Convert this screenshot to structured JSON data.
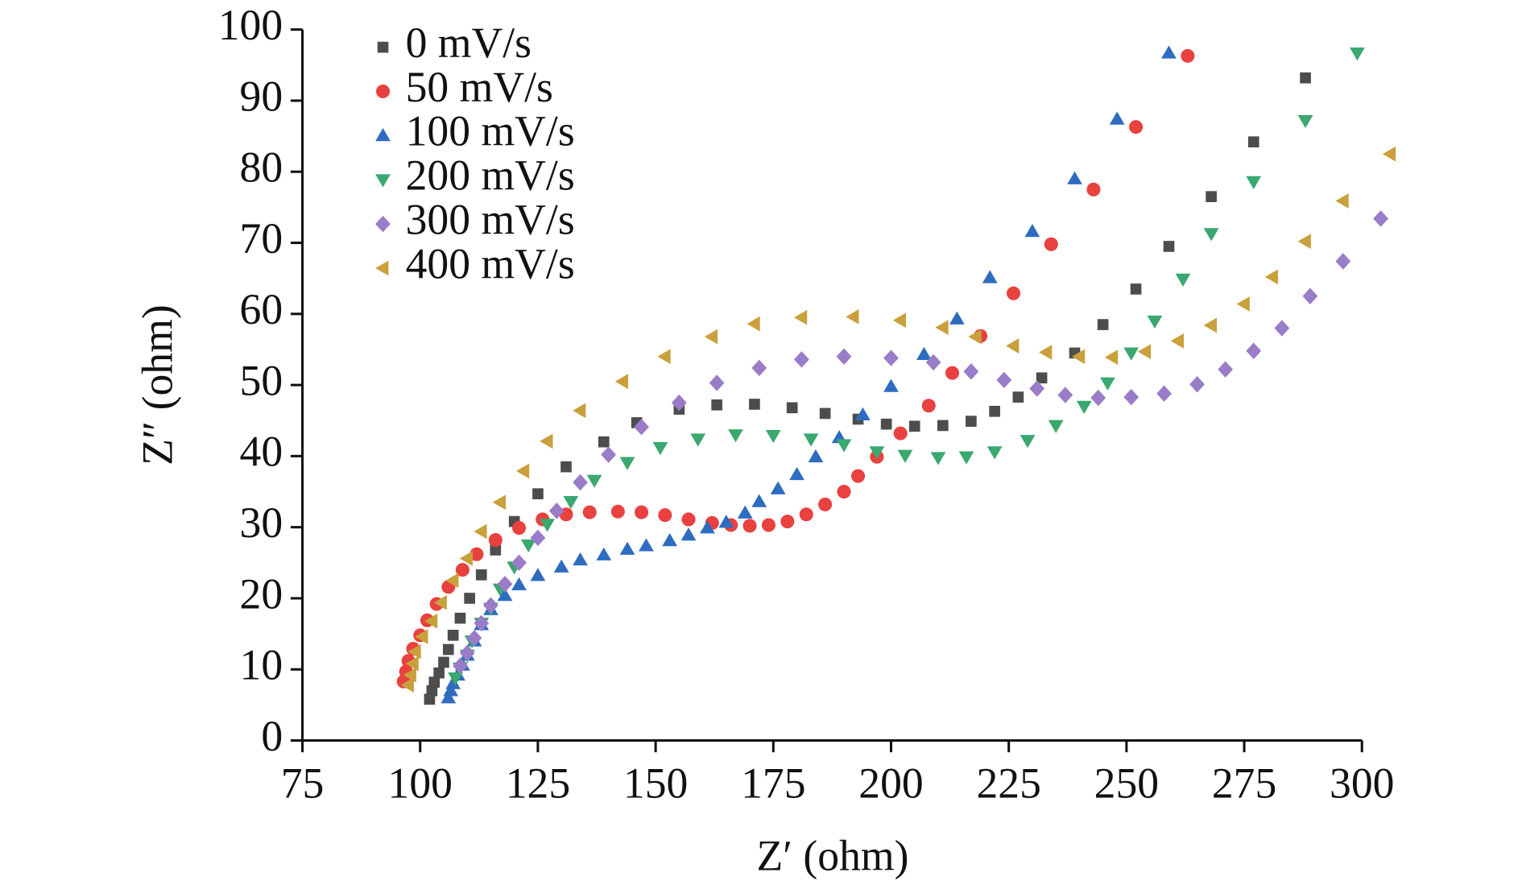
{
  "chart_data": {
    "type": "scatter",
    "xlabel": "Z′ (ohm)",
    "ylabel": "Z″ (ohm)",
    "xlim": [
      75,
      300
    ],
    "xticks": [
      75,
      100,
      125,
      150,
      175,
      200,
      225,
      250,
      275,
      300
    ],
    "ylim": [
      0,
      100
    ],
    "yticks": [
      0,
      10,
      20,
      30,
      40,
      50,
      60,
      70,
      80,
      90,
      100
    ],
    "grid": false,
    "legend": "upper left",
    "series": [
      {
        "name": "0 mV/s",
        "color": "#4d4d4d",
        "marker": "square",
        "x": [
          102,
          102.5,
          103,
          104,
          105,
          106,
          107,
          108.5,
          110.5,
          113,
          116,
          120,
          125,
          131,
          139,
          146,
          155,
          163,
          171,
          179,
          186,
          193,
          199,
          205,
          211,
          217,
          222,
          227,
          232,
          239,
          245,
          252,
          259,
          268,
          277,
          288
        ],
        "values": [
          5.8,
          7,
          8.2,
          9.5,
          11,
          12.8,
          14.8,
          17.2,
          20,
          23.3,
          26.8,
          30.8,
          34.7,
          38.5,
          42,
          44.7,
          46.6,
          47.2,
          47.3,
          46.8,
          46,
          45.2,
          44.5,
          44.2,
          44.3,
          44.9,
          46.3,
          48.3,
          51,
          54.5,
          58.5,
          63.5,
          69.5,
          76.5,
          84.2,
          93.2
        ]
      },
      {
        "name": "50 mV/s",
        "color": "#e8413f",
        "marker": "circle",
        "x": [
          96.5,
          97,
          97.5,
          98.5,
          100,
          101.5,
          103.5,
          106,
          109,
          112,
          116,
          121,
          126,
          131,
          136,
          142,
          147,
          152,
          157,
          162,
          166,
          170,
          174,
          178,
          182,
          186,
          190,
          193,
          197,
          202,
          208,
          213,
          219,
          226,
          234,
          243,
          252,
          263
        ],
        "values": [
          8.3,
          9.7,
          11.2,
          12.9,
          14.8,
          16.9,
          19.2,
          21.6,
          24,
          26.2,
          28.2,
          29.9,
          31.1,
          31.8,
          32.1,
          32.2,
          32.1,
          31.7,
          31.1,
          30.6,
          30.3,
          30.2,
          30.3,
          30.8,
          31.8,
          33.2,
          35,
          37.2,
          39.9,
          43.2,
          47.1,
          51.7,
          56.9,
          62.9,
          69.8,
          77.5,
          86.3,
          96.3
        ]
      },
      {
        "name": "100 mV/s",
        "color": "#2e6cc0",
        "marker": "triangle-up",
        "x": [
          106,
          106.5,
          107,
          108,
          109,
          110,
          111.5,
          113,
          115,
          118,
          121,
          125,
          130,
          134,
          139,
          144,
          148,
          153,
          157,
          161,
          165,
          169,
          172,
          176,
          180,
          184,
          189,
          194,
          200,
          207,
          214,
          221,
          230,
          239,
          248,
          259
        ],
        "values": [
          6,
          7,
          8,
          9.2,
          10.6,
          12,
          14,
          16.3,
          18.4,
          20.4,
          21.9,
          23.2,
          24.4,
          25.4,
          26.1,
          26.9,
          27.4,
          28.1,
          28.9,
          29.9,
          30.7,
          32,
          33.6,
          35.4,
          37.4,
          39.9,
          42.6,
          45.8,
          49.8,
          54.3,
          59.3,
          65.1,
          71.6,
          79,
          87.4,
          96.7
        ]
      },
      {
        "name": "200 mV/s",
        "color": "#3aa86f",
        "marker": "triangle-down",
        "x": [
          107.5,
          108.5,
          110,
          111,
          113,
          115,
          117,
          120,
          123,
          127,
          132,
          137,
          144,
          151,
          159,
          167,
          175,
          183,
          190,
          197,
          203,
          210,
          216,
          222,
          229,
          235,
          241,
          246,
          251,
          256,
          262,
          268,
          277,
          288,
          299
        ],
        "values": [
          8.8,
          10.2,
          12,
          14,
          16.5,
          18.6,
          21.3,
          24.4,
          27.5,
          30.4,
          33.6,
          36.6,
          39.1,
          41.2,
          42.4,
          43,
          42.9,
          42.4,
          41.6,
          40.6,
          40.1,
          39.8,
          39.9,
          40.6,
          42.2,
          44.3,
          47,
          50.3,
          54.5,
          59,
          64.9,
          71.3,
          78.6,
          87.2,
          96.7
        ]
      },
      {
        "name": "300 mV/s",
        "color": "#9b7cc8",
        "marker": "diamond",
        "x": [
          108.5,
          110,
          111.5,
          113,
          115,
          118,
          121,
          125,
          129,
          134,
          140,
          147,
          155,
          163,
          172,
          181,
          190,
          200,
          209,
          217,
          224,
          231,
          237,
          244,
          251,
          258,
          265,
          271,
          277,
          283,
          289,
          296,
          304
        ],
        "values": [
          10.5,
          12.3,
          14.4,
          16.5,
          19,
          22,
          25,
          28.5,
          32.3,
          36.3,
          40.2,
          44.1,
          47.5,
          50.3,
          52.4,
          53.6,
          54,
          53.8,
          53.2,
          51.9,
          50.7,
          49.5,
          48.6,
          48.2,
          48.3,
          48.8,
          50.1,
          52.2,
          54.8,
          58,
          62.5,
          67.4,
          73.4
        ]
      },
      {
        "name": "400 mV/s",
        "color": "#c9a03b",
        "marker": "triangle-left",
        "x": [
          97.5,
          98,
          98.5,
          99,
          100.5,
          102.5,
          104.5,
          107,
          110,
          113,
          117,
          122,
          127,
          134,
          143,
          152,
          162,
          171,
          181,
          192,
          202,
          211,
          218,
          226,
          233,
          240,
          247,
          254,
          261,
          268,
          275,
          281,
          288,
          296,
          306
        ],
        "values": [
          7.8,
          9.2,
          10.8,
          12.5,
          14.6,
          16.8,
          19.4,
          22.5,
          25.6,
          29.4,
          33.5,
          37.9,
          42.1,
          46.4,
          50.5,
          54,
          56.8,
          58.6,
          59.5,
          59.6,
          59.1,
          58.1,
          56.8,
          55.5,
          54.6,
          54,
          53.9,
          54.7,
          56.2,
          58.4,
          61.4,
          65.2,
          70.2,
          75.9,
          82.5
        ]
      }
    ]
  }
}
